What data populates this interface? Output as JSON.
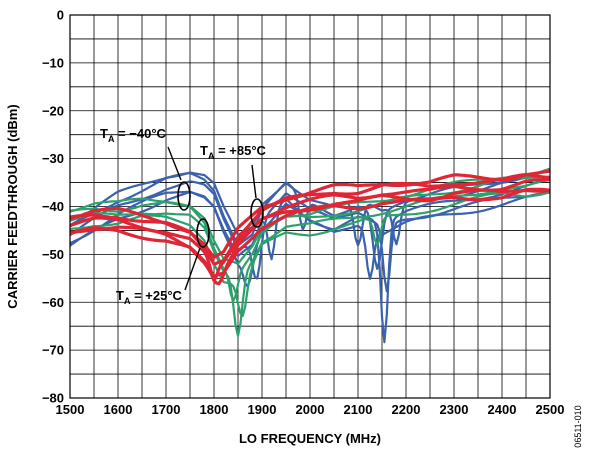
{
  "chart_data": {
    "type": "line",
    "title": "",
    "xlabel": "LO FREQUENCY (MHz)",
    "ylabel": "CARRIER FEEDTHROUGH (dBm)",
    "xlim": [
      1500,
      2500
    ],
    "ylim": [
      -80,
      0
    ],
    "x_ticks": [
      "1500",
      "1600",
      "1700",
      "1800",
      "1900",
      "2000",
      "2100",
      "2200",
      "2300",
      "2400",
      "2500"
    ],
    "y_ticks": [
      "0",
      "−10",
      "−20",
      "−30",
      "−40",
      "−50",
      "−60",
      "−70",
      "−80"
    ],
    "grid": true,
    "x": [
      1500,
      1550,
      1600,
      1650,
      1700,
      1750,
      1780,
      1800,
      1820,
      1850,
      1880,
      1900,
      1950,
      2000,
      2050,
      2100,
      2150,
      2200,
      2250,
      2300,
      2350,
      2400,
      2450,
      2500
    ],
    "series": [
      {
        "name": "T_A = −40°C",
        "color": "#3a62ad",
        "values": [
          -46,
          -43,
          -40,
          -38,
          -36,
          -35,
          -36,
          -38,
          -43,
          -49,
          -47,
          -42,
          -37,
          -41,
          -43,
          -41,
          -43,
          -41,
          -40,
          -39,
          -38,
          -37,
          -36,
          -35
        ],
        "spread": 3.5,
        "variants": [
          {
            "offset": 0,
            "dips": [
              [
                1890,
                10,
                12
              ],
              [
                2155,
                25,
                10
              ]
            ]
          },
          {
            "offset": 1.5,
            "dips": [
              [
                1985,
                7,
                10
              ],
              [
                2140,
                12,
                12
              ]
            ]
          },
          {
            "offset": -1.5,
            "dips": [
              [
                1920,
                10,
                10
              ],
              [
                2160,
                14,
                10
              ]
            ]
          },
          {
            "offset": 2.5,
            "dips": [
              [
                2100,
                10,
                12
              ],
              [
                2180,
                8,
                10
              ]
            ]
          },
          {
            "offset": -2.5,
            "dips": [
              [
                1870,
                6,
                12
              ],
              [
                2125,
                10,
                10
              ]
            ]
          }
        ]
      },
      {
        "name": "T_A = +25°C",
        "color": "#2ca16b",
        "values": [
          -43,
          -42,
          -42,
          -41,
          -41,
          -42,
          -45,
          -50,
          -54,
          -55,
          -51,
          -47,
          -44,
          -44,
          -43,
          -42,
          -41,
          -40,
          -39,
          -38,
          -37,
          -36,
          -36,
          -35
        ],
        "spread": 2.5,
        "variants": [
          {
            "offset": 0,
            "dips": [
              [
                1850,
                12,
                12
              ]
            ]
          },
          {
            "offset": 1.5,
            "dips": [
              [
                1840,
                6,
                10
              ]
            ]
          },
          {
            "offset": -1.5,
            "dips": [
              [
                1860,
                8,
                12
              ],
              [
                2140,
                6,
                10
              ]
            ]
          },
          {
            "offset": 2.5,
            "dips": []
          }
        ]
      },
      {
        "name": "T_A = +85°C",
        "color": "#e02635",
        "values": [
          -44,
          -43,
          -43,
          -44,
          -45,
          -47,
          -50,
          -53,
          -52,
          -47,
          -44,
          -42,
          -40,
          -39,
          -38,
          -38,
          -37,
          -37,
          -37,
          -36,
          -36,
          -36,
          -35,
          -35
        ],
        "spread": 2.0,
        "variants": [
          {
            "offset": 0,
            "dips": [
              [
                1800,
                3,
                10
              ]
            ]
          },
          {
            "offset": 1.2,
            "dips": []
          },
          {
            "offset": -1.2,
            "dips": [
              [
                1810,
                2,
                10
              ]
            ]
          },
          {
            "offset": 2.0,
            "dips": []
          },
          {
            "offset": -2.0,
            "dips": []
          }
        ]
      }
    ],
    "annotations": [
      {
        "label": "T",
        "sub": "A",
        "rest": " = −40°C"
      },
      {
        "label": "T",
        "sub": "A",
        "rest": " = +85°C"
      },
      {
        "label": "T",
        "sub": "A",
        "rest": " = +25°C"
      }
    ],
    "figure_code": "06511-010"
  }
}
